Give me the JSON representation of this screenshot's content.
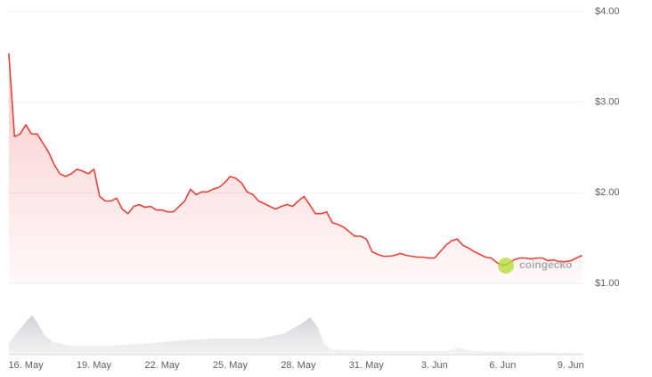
{
  "chart_data": {
    "type": "line",
    "watermark": "coingecko",
    "categories": [
      null,
      null,
      null,
      "16. May",
      null,
      null,
      null,
      null,
      null,
      null,
      null,
      null,
      null,
      null,
      null,
      "19. May",
      null,
      null,
      null,
      null,
      null,
      null,
      null,
      null,
      null,
      null,
      null,
      "22. May",
      null,
      null,
      null,
      null,
      null,
      null,
      null,
      null,
      null,
      null,
      null,
      "25. May",
      null,
      null,
      null,
      null,
      null,
      null,
      null,
      null,
      null,
      null,
      null,
      "28. May",
      null,
      null,
      null,
      null,
      null,
      null,
      null,
      null,
      null,
      null,
      null,
      "31. May",
      null,
      null,
      null,
      null,
      null,
      null,
      null,
      null,
      null,
      null,
      null,
      "3. Jun",
      null,
      null,
      null,
      null,
      null,
      null,
      null,
      null,
      null,
      null,
      null,
      "6. Jun",
      null,
      null,
      null,
      null,
      null,
      null,
      null,
      null,
      null,
      null,
      null,
      "9. Jun",
      null,
      null
    ],
    "values": [
      3.54,
      2.62,
      2.65,
      2.75,
      2.65,
      2.65,
      2.55,
      2.45,
      2.31,
      2.21,
      2.18,
      2.21,
      2.26,
      2.24,
      2.21,
      2.26,
      1.96,
      1.91,
      1.91,
      1.94,
      1.82,
      1.77,
      1.85,
      1.87,
      1.84,
      1.85,
      1.81,
      1.81,
      1.79,
      1.79,
      1.85,
      1.91,
      2.04,
      1.98,
      2.01,
      2.01,
      2.04,
      2.06,
      2.11,
      2.18,
      2.16,
      2.11,
      2.01,
      1.98,
      1.91,
      1.88,
      1.85,
      1.82,
      1.85,
      1.87,
      1.85,
      1.91,
      1.96,
      1.87,
      1.77,
      1.77,
      1.79,
      1.67,
      1.65,
      1.62,
      1.57,
      1.52,
      1.52,
      1.49,
      1.35,
      1.32,
      1.3,
      1.3,
      1.31,
      1.33,
      1.31,
      1.3,
      1.29,
      1.29,
      1.28,
      1.28,
      1.35,
      1.42,
      1.47,
      1.49,
      1.42,
      1.39,
      1.35,
      1.32,
      1.29,
      1.28,
      1.23,
      1.2,
      1.22,
      1.26,
      1.28,
      1.28,
      1.27,
      1.28,
      1.28,
      1.25,
      1.26,
      1.24,
      1.24,
      1.25,
      1.28,
      1.31
    ],
    "color": "#e8413c",
    "ylim": [
      1,
      4
    ],
    "yticks": [
      {
        "value": 4,
        "label": "$4.00"
      },
      {
        "value": 3,
        "label": "$3.00"
      },
      {
        "value": 2,
        "label": "$2.00"
      },
      {
        "value": 1,
        "label": "$1.00"
      }
    ],
    "grid": true
  }
}
